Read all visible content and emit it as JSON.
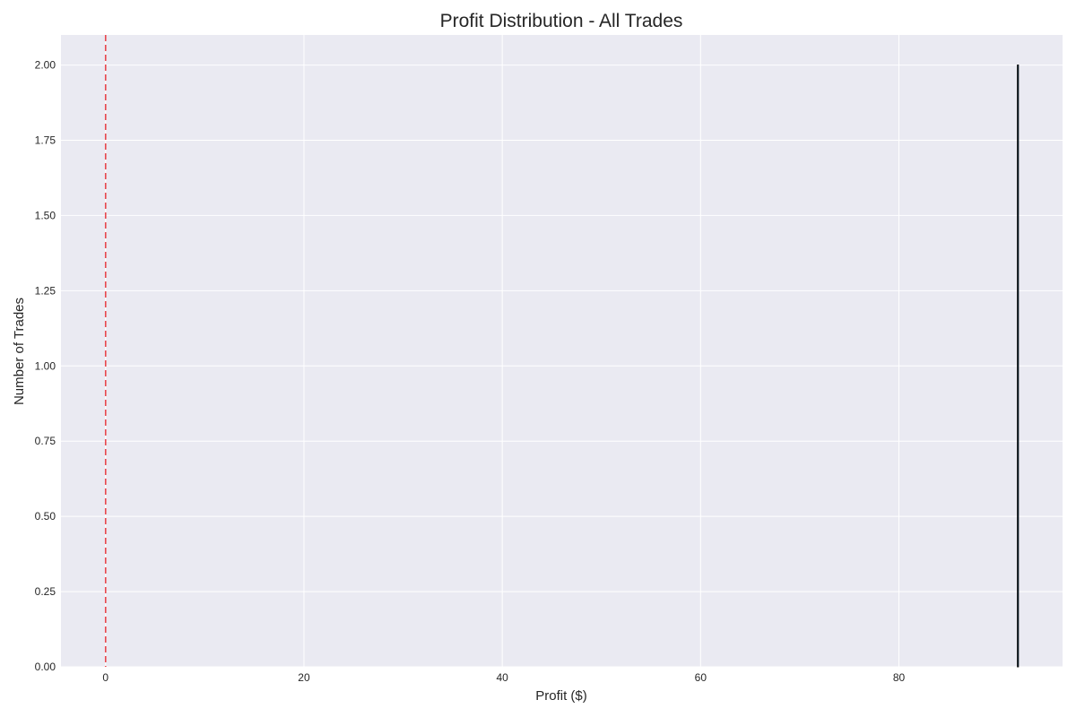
{
  "chart_data": {
    "type": "bar",
    "title": "Profit Distribution - All Trades",
    "xlabel": "Profit ($)",
    "ylabel": "Number of Trades",
    "xlim": [
      -4.5,
      96.5
    ],
    "ylim": [
      0,
      2.1
    ],
    "xticks": [
      0,
      20,
      40,
      60,
      80
    ],
    "xtick_labels": [
      "0",
      "20",
      "40",
      "60",
      "80"
    ],
    "yticks": [
      0,
      0.25,
      0.5,
      0.75,
      1.0,
      1.25,
      1.5,
      1.75,
      2.0
    ],
    "ytick_labels": [
      "0.00",
      "0.25",
      "0.50",
      "0.75",
      "1.00",
      "1.25",
      "1.50",
      "1.75",
      "2.00"
    ],
    "bins": [
      {
        "x0": 91.95,
        "x1": 92.05,
        "count": 2
      }
    ],
    "reference_lines": [
      {
        "orientation": "vertical",
        "x": 0,
        "color": "#e8474d",
        "style": "dashed"
      }
    ],
    "grid": true,
    "background_color": "#eaeaf2",
    "bar_color": "#1f77b4",
    "bar_edge_color": "#000000"
  }
}
